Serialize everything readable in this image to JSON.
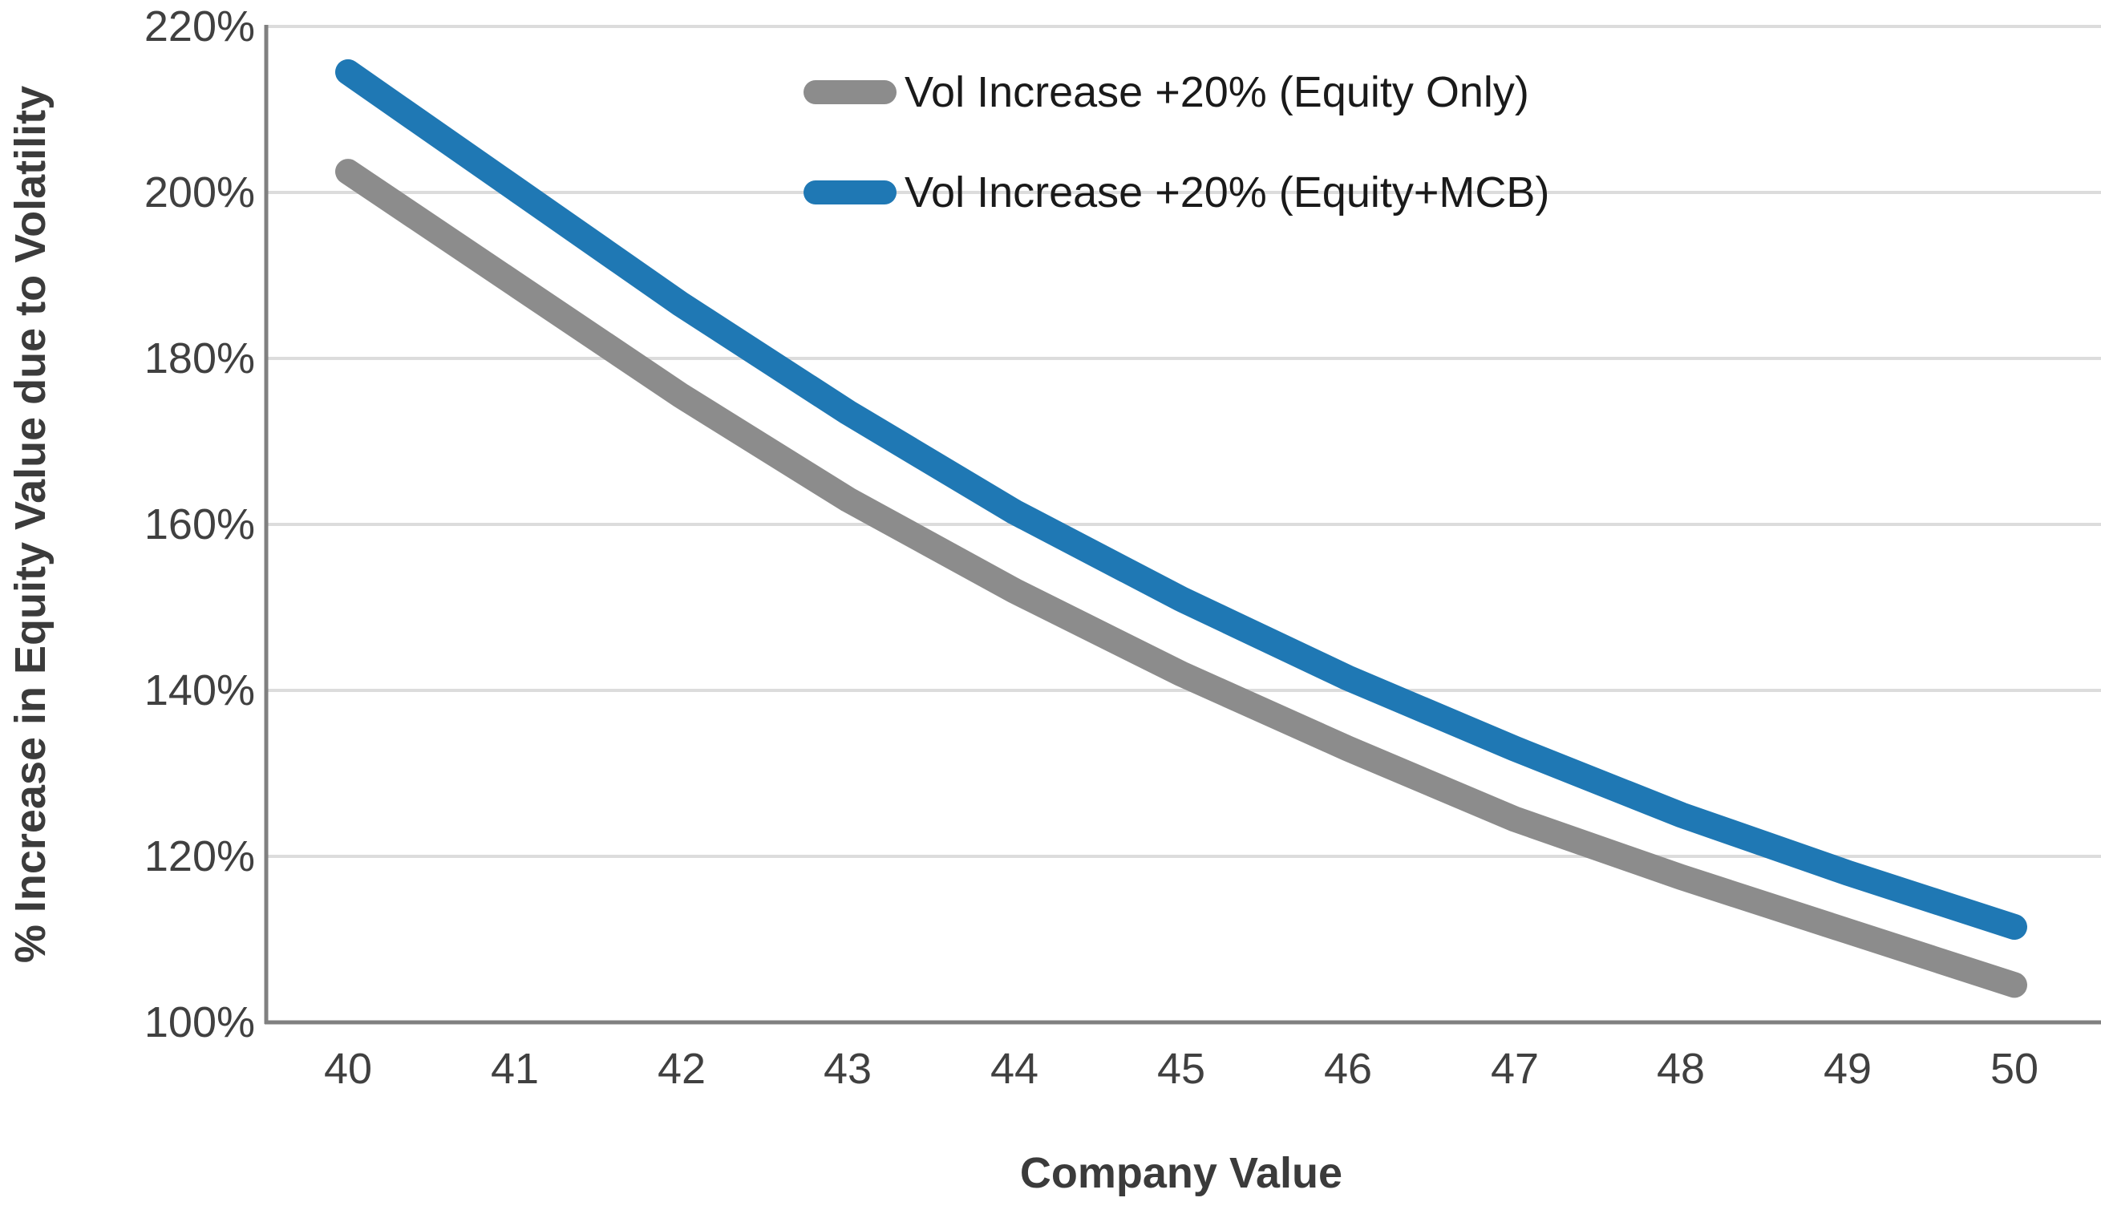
{
  "chart_data": {
    "type": "line",
    "title": "",
    "xlabel": "Company Value",
    "ylabel": "% Increase in Equity Value due to Volatility",
    "categories": [
      40,
      41,
      42,
      43,
      44,
      45,
      46,
      47,
      48,
      49,
      50
    ],
    "xtick_labels": [
      "40",
      "41",
      "42",
      "43",
      "44",
      "45",
      "46",
      "47",
      "48",
      "49",
      "50"
    ],
    "ytick_labels": [
      "220%",
      "200%",
      "180%",
      "160%",
      "140%",
      "120%",
      "100%"
    ],
    "ylim": [
      100,
      220
    ],
    "ytick_step": 20,
    "grid": true,
    "legend_position": "top-center-inside",
    "series": [
      {
        "name": "Vol Increase +20% (Equity Only)",
        "color": "#8c8c8c",
        "values": [
          202.5,
          189,
          175.5,
          163,
          152,
          142,
          133,
          124.5,
          117.5,
          111,
          104.5
        ]
      },
      {
        "name": "Vol Increase +20% (Equity+MCB)",
        "color": "#1f78b4",
        "values": [
          214.5,
          200.5,
          186.5,
          173.5,
          161.5,
          151,
          141.5,
          133,
          125,
          118,
          111.5
        ]
      }
    ],
    "colors": {
      "gridline": "#dcdcdc",
      "axis": "#808080",
      "tick_text": "#404040"
    }
  }
}
